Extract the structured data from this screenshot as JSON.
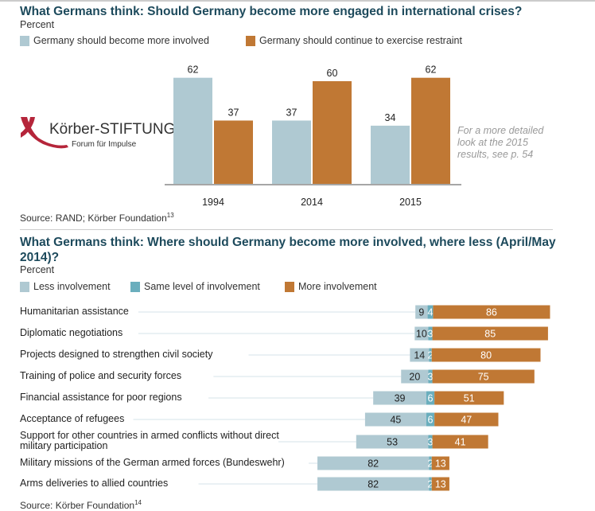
{
  "colors": {
    "blue": "#afc9d2",
    "teal": "#6aaebd",
    "orange": "#c07834",
    "title": "#1d4a5c",
    "logo_red": "#b5253a"
  },
  "logo": {
    "name": "Körber-STIFTUNG",
    "tagline": "Forum für Impulse"
  },
  "note": "For a more detailed look at the 2015 results, see p. 54",
  "chart_data": [
    {
      "type": "bar",
      "title": "What Germans think: Should Germany become more engaged in international crises?",
      "subtitle": "Percent",
      "categories": [
        "1994",
        "2014",
        "2015"
      ],
      "series": [
        {
          "name": "Germany should become more involved",
          "values": [
            62,
            37,
            34
          ]
        },
        {
          "name": "Germany should continue to exercise restraint",
          "values": [
            37,
            60,
            62
          ]
        }
      ],
      "source": "Source: RAND; Körber Foundation",
      "source_sup": "13",
      "legend": "top-left"
    },
    {
      "type": "bar",
      "orientation": "horizontal-stacked",
      "title": "What Germans think: Where should Germany become more involved, where less (April/May 2014)?",
      "subtitle": "Percent",
      "categories": [
        "Humanitarian assistance",
        "Diplomatic negotiations",
        "Projects designed to strengthen civil society",
        "Training of police and security forces",
        "Financial assistance for poor regions",
        "Acceptance of refugees",
        "Support for other countries in armed conflicts without direct military participation",
        "Military missions of the German armed forces (Bundeswehr)",
        "Arms deliveries to allied countries"
      ],
      "series": [
        {
          "name": "Less involvement",
          "values": [
            9,
            10,
            14,
            20,
            39,
            45,
            53,
            82,
            82
          ]
        },
        {
          "name": "Same level of involvement",
          "values": [
            4,
            3,
            2,
            3,
            6,
            6,
            3,
            2,
            2
          ]
        },
        {
          "name": "More involvement",
          "values": [
            86,
            85,
            80,
            75,
            51,
            47,
            41,
            13,
            13
          ]
        }
      ],
      "source": "Source: Körber Foundation",
      "source_sup": "14",
      "legend": "top-left"
    }
  ]
}
